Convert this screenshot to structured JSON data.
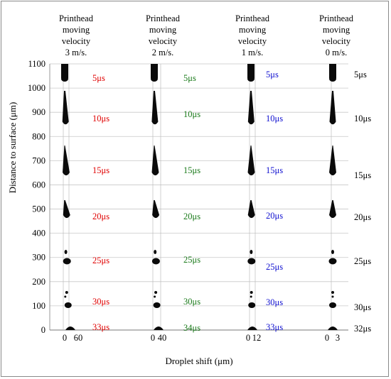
{
  "headers": [
    {
      "line1": "Printhead",
      "line2": "moving",
      "line3": "velocity",
      "line4": "3 m/s."
    },
    {
      "line1": "Printhead",
      "line2": "moving",
      "line3": "velocity",
      "line4": "2 m/s."
    },
    {
      "line1": "Printhead",
      "line2": "moving",
      "line3": "velocity",
      "line4": "1 m/s."
    },
    {
      "line1": "Printhead",
      "line2": "moving",
      "line3": "velocity",
      "line4": "0 m/s."
    }
  ],
  "y_axis": {
    "label": "Distance to surface (μm)",
    "ticks": [
      "1100",
      "1000",
      "900",
      "800",
      "700",
      "600",
      "500",
      "400",
      "300",
      "200",
      "100",
      "0"
    ],
    "range": [
      0,
      1100
    ]
  },
  "x_axis": {
    "label": "Droplet shift (μm)"
  },
  "columns": [
    {
      "x_ticks": [
        "0",
        "60"
      ],
      "color": "#e00000",
      "times": [
        "5μs",
        "10μs",
        "15μs",
        "20μs",
        "25μs",
        "30μs",
        "33μs"
      ]
    },
    {
      "x_ticks": [
        "0",
        "40"
      ],
      "color": "#1a7a1a",
      "times": [
        "5μs",
        "10μs",
        "15μs",
        "20μs",
        "25μs",
        "30μs",
        "34μs"
      ]
    },
    {
      "x_ticks": [
        "0",
        "12"
      ],
      "color": "#1010d0",
      "times": [
        "5μs",
        "10μs",
        "15μs",
        "20μs",
        "25μs",
        "30μs",
        "33μs"
      ]
    },
    {
      "x_ticks": [
        "0",
        "3"
      ],
      "color": "#000000",
      "times": [
        "5μs",
        "10μs",
        "15μs",
        "20μs",
        "25μs",
        "30μs",
        "32μs"
      ]
    }
  ]
}
